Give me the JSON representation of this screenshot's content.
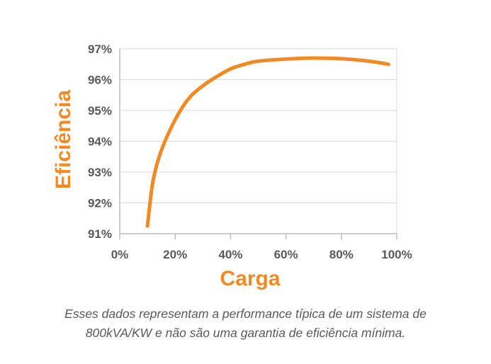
{
  "chart_data": {
    "type": "line",
    "xlabel": "Carga",
    "ylabel": "Eficiência",
    "x_ticks": [
      "0%",
      "20%",
      "40%",
      "60%",
      "80%",
      "100%"
    ],
    "y_ticks": [
      "91%",
      "92%",
      "93%",
      "94%",
      "95%",
      "96%",
      "97%"
    ],
    "xlim": [
      0,
      100
    ],
    "ylim": [
      91,
      97
    ],
    "grid": "horizontal",
    "line_color": "#f08a24",
    "series": [
      {
        "x": [
          10,
          12,
          15,
          20,
          25,
          30,
          35,
          40,
          45,
          50,
          60,
          70,
          80,
          90,
          97
        ],
        "y": [
          91.25,
          92.7,
          93.7,
          94.7,
          95.4,
          95.8,
          96.1,
          96.35,
          96.5,
          96.6,
          96.67,
          96.7,
          96.68,
          96.6,
          96.5
        ]
      }
    ]
  },
  "caption": {
    "line1": "Esses dados representam a performance típica de um sistema de",
    "line2": "800kVA/KW e não são uma garantia de eficiência mínima."
  }
}
